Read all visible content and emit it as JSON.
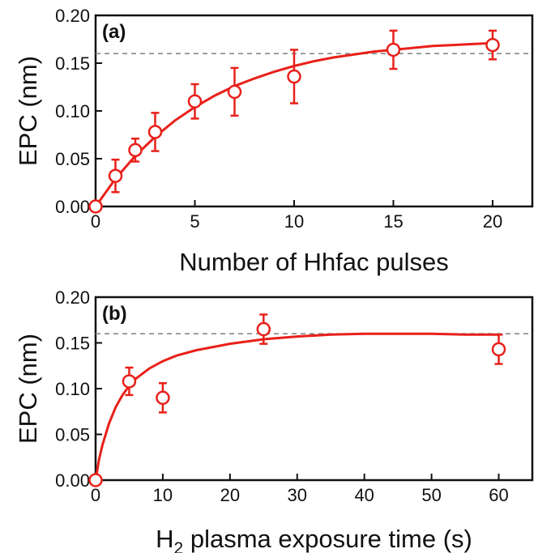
{
  "chart_data": [
    {
      "type": "scatter",
      "panel_label": "(a)",
      "xlabel": "Number of Hhfac pulses",
      "ylabel": "EPC (nm)",
      "xlim": [
        0,
        22
      ],
      "ylim": [
        0,
        0.2
      ],
      "xticks": [
        0,
        5,
        10,
        15,
        20
      ],
      "xtick_labels": [
        "0",
        "5",
        "10",
        "15",
        "20"
      ],
      "yticks": [
        0,
        0.05,
        0.1,
        0.15,
        0.2
      ],
      "ytick_labels": [
        "0.00",
        "0.05",
        "0.10",
        "0.15",
        "0.20"
      ],
      "reference_line_y": 0.16,
      "color": "#e8201a",
      "points": [
        {
          "x": 0,
          "y": 0.0,
          "err": 0.0
        },
        {
          "x": 1,
          "y": 0.032,
          "err": 0.017
        },
        {
          "x": 2,
          "y": 0.059,
          "err": 0.012
        },
        {
          "x": 3,
          "y": 0.078,
          "err": 0.02
        },
        {
          "x": 5,
          "y": 0.11,
          "err": 0.018
        },
        {
          "x": 7,
          "y": 0.12,
          "err": 0.025
        },
        {
          "x": 10,
          "y": 0.136,
          "err": 0.028
        },
        {
          "x": 15,
          "y": 0.164,
          "err": 0.02
        },
        {
          "x": 20,
          "y": 0.169,
          "err": 0.015
        }
      ],
      "fit": {
        "x": [
          0,
          1,
          2,
          3,
          4,
          5,
          6,
          7,
          8,
          9,
          10,
          11,
          12,
          13,
          14,
          15,
          16,
          17,
          18,
          19,
          20
        ],
        "y": [
          0.0,
          0.029,
          0.053,
          0.073,
          0.09,
          0.104,
          0.116,
          0.126,
          0.134,
          0.141,
          0.147,
          0.152,
          0.156,
          0.159,
          0.162,
          0.164,
          0.166,
          0.168,
          0.169,
          0.17,
          0.171
        ]
      }
    },
    {
      "type": "scatter",
      "panel_label": "(b)",
      "xlabel_main": "H",
      "xlabel_sub": "2",
      "xlabel_rest": " plasma exposure time (s)",
      "ylabel": "EPC (nm)",
      "xlim": [
        0,
        65
      ],
      "ylim": [
        0,
        0.2
      ],
      "xticks": [
        0,
        10,
        20,
        30,
        40,
        50,
        60
      ],
      "xtick_labels": [
        "0",
        "10",
        "20",
        "30",
        "40",
        "50",
        "60"
      ],
      "yticks": [
        0,
        0.05,
        0.1,
        0.15,
        0.2
      ],
      "ytick_labels": [
        "0.00",
        "0.05",
        "0.10",
        "0.15",
        "0.20"
      ],
      "reference_line_y": 0.16,
      "color": "#e8201a",
      "points": [
        {
          "x": 0,
          "y": 0.0,
          "err": 0.0
        },
        {
          "x": 5,
          "y": 0.108,
          "err": 0.015
        },
        {
          "x": 10,
          "y": 0.09,
          "err": 0.016
        },
        {
          "x": 25,
          "y": 0.165,
          "err": 0.016
        },
        {
          "x": 60,
          "y": 0.143,
          "err": 0.016
        }
      ],
      "fit": {
        "x": [
          0,
          0.5,
          1,
          2,
          3,
          4,
          5,
          6,
          8,
          10,
          12,
          15,
          20,
          25,
          30,
          35,
          40,
          45,
          50,
          55,
          60
        ],
        "y": [
          0.0,
          0.022,
          0.038,
          0.062,
          0.08,
          0.093,
          0.103,
          0.111,
          0.122,
          0.13,
          0.136,
          0.142,
          0.149,
          0.154,
          0.157,
          0.159,
          0.16,
          0.16,
          0.16,
          0.159,
          0.159
        ]
      }
    }
  ]
}
